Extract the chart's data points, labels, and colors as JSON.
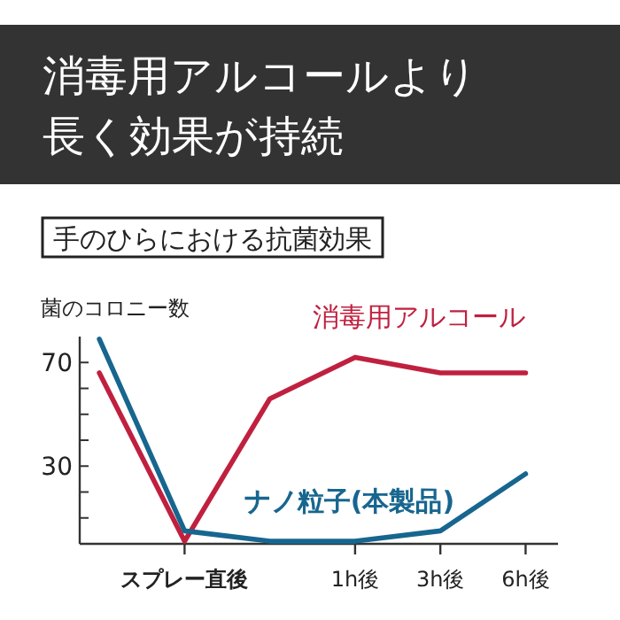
{
  "chart_data": {
    "type": "line",
    "title": "消毒用アルコールより長く効果が持続",
    "subtitle": "手のひらにおける抗菌効果",
    "ylabel": "菌のコロニー数",
    "categories": [
      null,
      "スプレー直後",
      null,
      "1h後",
      "3h後",
      "6h後"
    ],
    "series": [
      {
        "name": "消毒用アルコール",
        "color": "#c0203f",
        "values": [
          66,
          1,
          56,
          72,
          66,
          66
        ]
      },
      {
        "name": "ナノ粒子(本製品)",
        "color": "#17668f",
        "values": [
          79,
          5,
          1,
          1,
          5,
          27
        ]
      }
    ],
    "ylim": [
      0,
      80
    ],
    "yticks": [
      {
        "value": 10,
        "label": null
      },
      {
        "value": 20,
        "label": null
      },
      {
        "value": 30,
        "label": "30"
      },
      {
        "value": 40,
        "label": null
      },
      {
        "value": 50,
        "label": null
      },
      {
        "value": 60,
        "label": null
      },
      {
        "value": 70,
        "label": "70"
      }
    ],
    "grid": false,
    "legend": false,
    "marker": "none",
    "line_style": "solid"
  }
}
